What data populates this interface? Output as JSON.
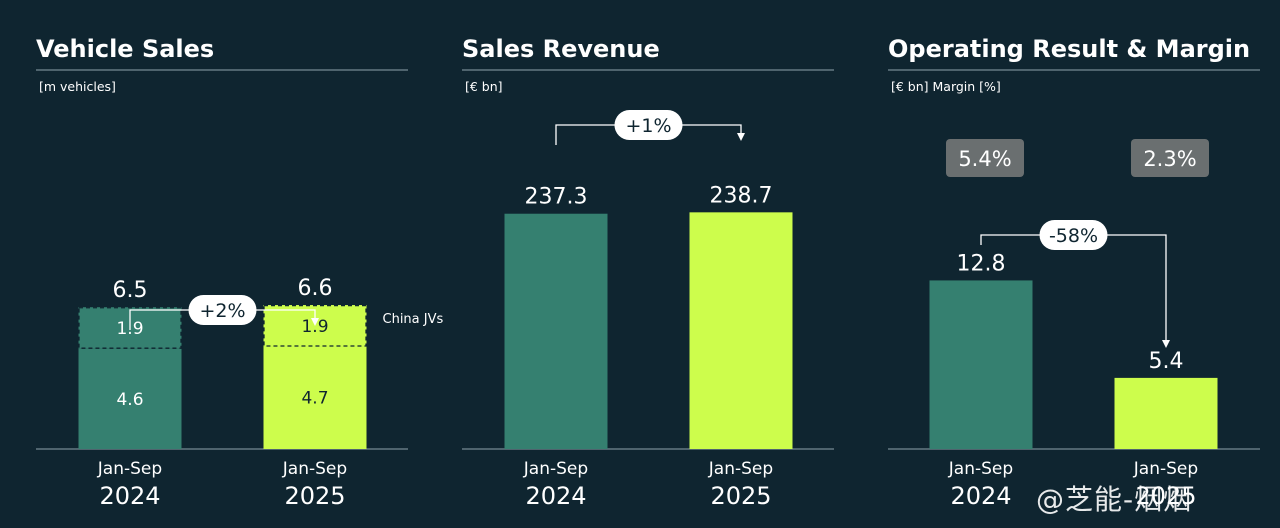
{
  "colors": {
    "background": "#0f2530",
    "bar_2024": "#358070",
    "bar_2025": "#cdfd4c",
    "badge_bg": "#6a6f70",
    "text": "#ffffff",
    "text_dark": "#0f2530"
  },
  "watermark": "@芝能-烟烟",
  "chart_data": [
    {
      "type": "bar",
      "title": "Vehicle Sales",
      "unit": "[m vehicles]",
      "categories": [
        "Jan-Sep 2024",
        "Jan-Sep 2025"
      ],
      "category_lines": [
        [
          "Jan-Sep",
          "2024"
        ],
        [
          "Jan-Sep",
          "2025"
        ]
      ],
      "series": [
        {
          "name": "",
          "values": [
            4.6,
            4.7
          ]
        },
        {
          "name": "China JVs",
          "values": [
            1.9,
            1.9
          ]
        }
      ],
      "totals": [
        6.5,
        6.6
      ],
      "totals_labels": [
        "6.5",
        "6.6"
      ],
      "segment_labels": [
        [
          "4.6",
          "1.9"
        ],
        [
          "4.7",
          "1.9"
        ]
      ],
      "change_label": "+2%",
      "ylim": [
        0,
        16
      ]
    },
    {
      "type": "bar",
      "title": "Sales Revenue",
      "unit": "[€ bn]",
      "categories": [
        "Jan-Sep 2024",
        "Jan-Sep 2025"
      ],
      "category_lines": [
        [
          "Jan-Sep",
          "2024"
        ],
        [
          "Jan-Sep",
          "2025"
        ]
      ],
      "values": [
        237.3,
        238.7
      ],
      "value_labels": [
        "237.3",
        "238.7"
      ],
      "change_label": "+1%",
      "ylim": [
        0,
        352
      ]
    },
    {
      "type": "bar",
      "title": "Operating Result & Margin",
      "unit": "[€ bn] Margin [%]",
      "categories": [
        "Jan-Sep 2024",
        "Jan-Sep 2025"
      ],
      "category_lines": [
        [
          "Jan-Sep",
          "2024"
        ],
        [
          "Jan-Sep",
          "2025"
        ]
      ],
      "values": [
        12.8,
        5.4
      ],
      "value_labels": [
        "12.8",
        "5.4"
      ],
      "margins": [
        "5.4%",
        "2.3%"
      ],
      "change_label": "-58%",
      "ylim": [
        0,
        26.5
      ]
    }
  ]
}
